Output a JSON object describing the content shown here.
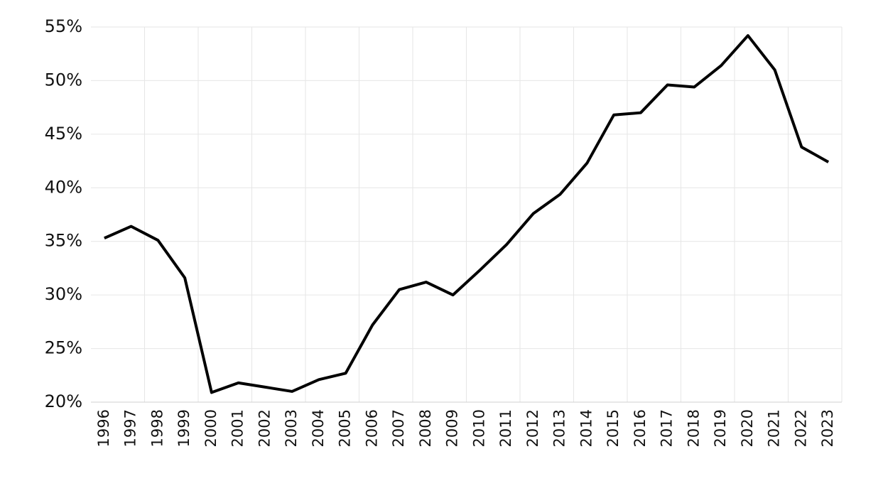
{
  "chart_data": {
    "type": "line",
    "categories": [
      "1996",
      "1997",
      "1998",
      "1999",
      "2000",
      "2001",
      "2002",
      "2003",
      "2004",
      "2005",
      "2006",
      "2007",
      "2008",
      "2009",
      "2010",
      "2011",
      "2012",
      "2013",
      "2014",
      "2015",
      "2016",
      "2017",
      "2018",
      "2019",
      "2020",
      "2021",
      "2022",
      "2023"
    ],
    "series": [
      {
        "color": "#000000",
        "values": [
          35.3,
          36.4,
          35.1,
          31.6,
          20.9,
          21.8,
          21.4,
          21.0,
          22.1,
          22.7,
          27.2,
          30.5,
          31.2,
          30.0,
          32.3,
          34.7,
          37.6,
          39.4,
          42.3,
          46.8,
          47.0,
          49.6,
          49.4,
          51.4,
          54.2,
          51.0,
          43.8,
          42.4
        ]
      }
    ],
    "ylim": [
      20,
      55
    ],
    "yticks": [
      {
        "value": 20,
        "label": "20%"
      },
      {
        "value": 25,
        "label": "25%"
      },
      {
        "value": 30,
        "label": "30%"
      },
      {
        "value": 35,
        "label": "35%"
      },
      {
        "value": 40,
        "label": "40%"
      },
      {
        "value": 45,
        "label": "45%"
      },
      {
        "value": 50,
        "label": "50%"
      },
      {
        "value": 55,
        "label": "55%"
      }
    ],
    "grid": true
  }
}
